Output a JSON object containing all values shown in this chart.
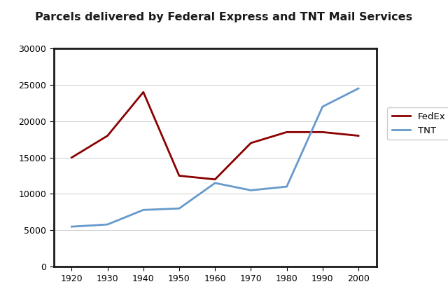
{
  "title": "Parcels delivered by Federal Express and TNT Mail Services",
  "years": [
    1920,
    1930,
    1940,
    1950,
    1960,
    1970,
    1980,
    1990,
    2000
  ],
  "fedex": [
    15000,
    18000,
    24000,
    12500,
    12000,
    17000,
    18500,
    18500,
    18000
  ],
  "tnt": [
    5500,
    5800,
    7800,
    8000,
    11500,
    10500,
    11000,
    22000,
    24500
  ],
  "fedex_color": "#8B0000",
  "tnt_color": "#6699CC",
  "fedex_label": "FedEx",
  "tnt_label": "TNT",
  "ylim": [
    0,
    30000
  ],
  "yticks": [
    0,
    5000,
    10000,
    15000,
    20000,
    25000,
    30000
  ],
  "xlim_left": 1915,
  "xlim_right": 2005,
  "xticks": [
    1920,
    1930,
    1940,
    1950,
    1960,
    1970,
    1980,
    1990,
    2000
  ],
  "linewidth": 2.0,
  "bg_color": "#ffffff",
  "border_color": "#1a1a1a",
  "grid_color": "#d0d0d0",
  "title_fontsize": 11.5,
  "tick_fontsize": 9,
  "legend_fontsize": 9.5,
  "legend_line_color_fedex": "#8B0000",
  "legend_line_color_tnt": "#6699CC"
}
